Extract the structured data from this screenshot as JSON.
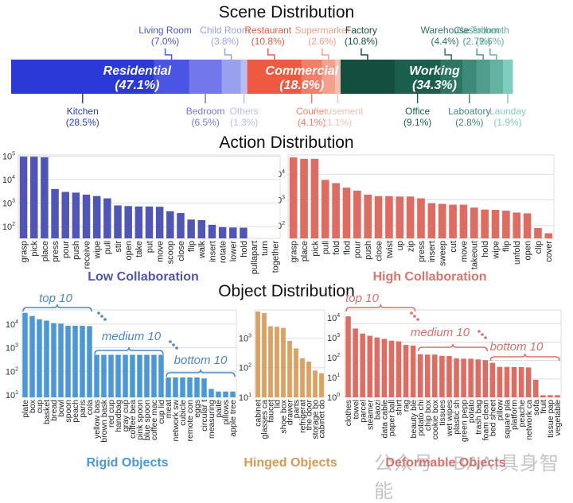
{
  "chart_data": [
    {
      "type": "bar",
      "title": "Scene Distribution",
      "orientation": "stacked-horizontal",
      "groups": [
        {
          "name": "Residential",
          "percent": "47.1%",
          "color": "#2233e0",
          "items": [
            {
              "name": "Kitchen",
              "percent": 28.5,
              "label_pos": "bottom",
              "color": "#2a39d8"
            },
            {
              "name": "Living Room",
              "percent": 7.0,
              "label_pos": "top",
              "color": "#4b55e4"
            },
            {
              "name": "Bedroom",
              "percent": 6.5,
              "label_pos": "bottom",
              "color": "#7278ea"
            },
            {
              "name": "Child Room",
              "percent": 3.8,
              "label_pos": "top",
              "color": "#9aa0f0"
            },
            {
              "name": "Others",
              "percent": 1.3,
              "label_pos": "bottom",
              "color": "#b9bdf5"
            }
          ]
        },
        {
          "name": "Commercial",
          "percent": "18.6%",
          "color": "#e85a44",
          "items": [
            {
              "name": "Restaurant",
              "percent": 10.8,
              "label_pos": "top",
              "color": "#ee5a40"
            },
            {
              "name": "Courier",
              "percent": 4.1,
              "label_pos": "bottom",
              "color": "#f27e67"
            },
            {
              "name": "Supermarket",
              "percent": 2.6,
              "label_pos": "top",
              "color": "#f5a08d"
            },
            {
              "name": "Amusement",
              "percent": 1.1,
              "label_pos": "bottom",
              "color": "#f8c0b2"
            }
          ]
        },
        {
          "name": "Working",
          "percent": "34.3%",
          "color": "#1e5a48",
          "items": [
            {
              "name": "Factory",
              "percent": 10.8,
              "label_pos": "top",
              "color": "#134e3e"
            },
            {
              "name": "Office",
              "percent": 9.1,
              "label_pos": "bottom",
              "color": "#1a5e4c"
            },
            {
              "name": "Warehouse",
              "percent": 4.4,
              "label_pos": "top",
              "color": "#2b7564"
            },
            {
              "name": "Laboatory",
              "percent": 2.8,
              "label_pos": "bottom",
              "color": "#3d8a78"
            },
            {
              "name": "Classroom",
              "percent": 2.7,
              "label_pos": "top",
              "color": "#4f9d8b"
            },
            {
              "name": "Tollbooth",
              "percent": 2.6,
              "label_pos": "top",
              "color": "#62b3a0"
            },
            {
              "name": "Launday",
              "percent": 1.9,
              "label_pos": "bottom",
              "color": "#7dcfbd"
            }
          ]
        }
      ]
    },
    {
      "type": "bar",
      "title": "Action Distribution",
      "subtitle": "Low Collaboration",
      "yscale": "log",
      "ylim": [
        10,
        100000
      ],
      "yticks": [
        "10^2",
        "10^3",
        "10^4",
        "10^5"
      ],
      "color": "#5055b8",
      "categories": [
        "grasp",
        "pick",
        "place",
        "press",
        "pour",
        "push",
        "receive",
        "wipe",
        "pull",
        "stir",
        "open",
        "take",
        "put",
        "move",
        "scoop",
        "close",
        "flip",
        "walk",
        "insert",
        "rotate",
        "lower",
        "hold",
        "pullapart",
        "turn",
        "together"
      ],
      "values": [
        95000,
        95000,
        90000,
        4000,
        3000,
        2800,
        2300,
        2000,
        1600,
        800,
        750,
        720,
        720,
        700,
        450,
        380,
        200,
        190,
        120,
        95,
        92,
        90,
        14,
        14,
        14
      ]
    },
    {
      "type": "bar",
      "subtitle": "High Collaboration",
      "yscale": "log",
      "ylim": [
        30,
        60000
      ],
      "yticks": [
        "10^2",
        "10^3",
        "10^4"
      ],
      "color": "#e06b60",
      "categories": [
        "grasp",
        "place",
        "pick",
        "pull",
        "fold",
        "flod",
        "pour",
        "push",
        "close",
        "twist",
        "up",
        "zip",
        "press",
        "insert",
        "sweep",
        "cut",
        "move",
        "takeout",
        "hold",
        "wipe",
        "flip",
        "unfold",
        "open",
        "clip",
        "cover"
      ],
      "values": [
        45000,
        40000,
        40000,
        6000,
        4500,
        3000,
        2300,
        1600,
        1400,
        1400,
        1350,
        1350,
        1150,
        750,
        700,
        650,
        650,
        500,
        420,
        410,
        380,
        320,
        300,
        80,
        50
      ]
    },
    {
      "type": "bar",
      "title": "Object Distribution",
      "subtitle": "Rigid Objects",
      "yscale": "log",
      "ylim": [
        10,
        40000
      ],
      "yticks": [
        "10^1",
        "10^2",
        "10^3",
        "10^4"
      ],
      "color": "#4a98d8",
      "annotations": [
        "top 10",
        "medium 10",
        "bottom 10"
      ],
      "categories": [
        "plate",
        "box",
        "cup",
        "basket",
        "bread",
        "bowl",
        "spoon",
        "peach",
        "paris",
        "cola",
        "yellow bas",
        "brown bask",
        "red cup",
        "handbag",
        "gray cup",
        "coffee bea",
        "pink spoon",
        "blue spoon",
        "coffee mac",
        "cup lid",
        "meat",
        "network sw",
        "cubicle",
        "remote con",
        "eggs",
        "circular t",
        "measuring",
        "paite",
        "pillows",
        "apple tree"
      ],
      "values": [
        30000,
        22000,
        16000,
        14000,
        11000,
        10500,
        8500,
        8500,
        8500,
        8200,
        500,
        500,
        500,
        500,
        500,
        500,
        500,
        500,
        500,
        500,
        55,
        55,
        55,
        55,
        55,
        50,
        18,
        14,
        14,
        14
      ]
    },
    {
      "type": "bar",
      "subtitle": "Hinged Objects",
      "yscale": "log",
      "ylim": [
        10,
        10000
      ],
      "yticks": [
        "10^1",
        "10^2",
        "10^3"
      ],
      "color": "#dda060",
      "categories": [
        "cabinet",
        "glasses ca",
        "faucet",
        "lid",
        "shoe box",
        "drawer",
        "parts",
        "refrigerat",
        "the door",
        "storage bo",
        "cabinet do"
      ],
      "values": [
        8000,
        7000,
        2500,
        2400,
        2200,
        800,
        450,
        210,
        160,
        80,
        65
      ]
    },
    {
      "type": "bar",
      "subtitle": "Deformable Objects",
      "yscale": "log",
      "ylim": [
        1,
        40000
      ],
      "yticks": [
        "10^0",
        "10^1",
        "10^2",
        "10^3",
        "10^4"
      ],
      "color": "#e06b60",
      "annotations": [
        "top 10",
        "medium 10",
        "bottom 10"
      ],
      "categories": [
        "clothes",
        "towel",
        "parcel",
        "steamer",
        "baozi",
        "data cable",
        "paper ball",
        "shirt",
        "rag",
        "beauty ble",
        "potato chi",
        "chip box",
        "cookie box",
        "tissues",
        "wet wipes",
        "plastic sh",
        "green pepp",
        "potato",
        "trash bag",
        "foam clean",
        "bed sheet",
        "pillow",
        "square pla",
        "platform",
        "peache",
        "network ca",
        "sofa",
        "fruit",
        "tissue pap",
        "vegetable"
      ],
      "values": [
        25000,
        5500,
        2900,
        2200,
        1800,
        1500,
        1200,
        1100,
        700,
        650,
        220,
        210,
        210,
        180,
        175,
        130,
        125,
        125,
        115,
        105,
        75,
        45,
        45,
        44,
        44,
        42,
        9,
        1.3,
        1.3,
        1.3
      ]
    }
  ],
  "titles": {
    "scene": "Scene Distribution",
    "action": "Action Distribution",
    "object": "Object Distribution"
  },
  "watermark": "公众号 · BAAI具身智能"
}
